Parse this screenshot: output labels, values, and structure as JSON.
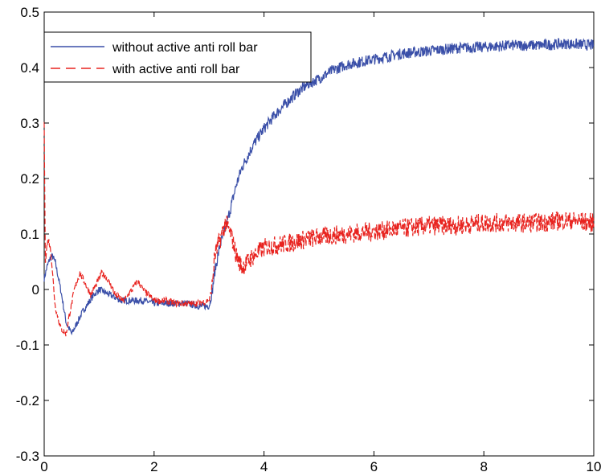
{
  "chart_data": {
    "type": "line",
    "xlim": [
      0,
      10
    ],
    "ylim": [
      -0.3,
      0.5
    ],
    "xticks": [
      0,
      2,
      4,
      6,
      8,
      10
    ],
    "yticks": [
      -0.3,
      -0.2,
      -0.1,
      0,
      0.1,
      0.2,
      0.3,
      0.4,
      0.5
    ],
    "xtick_labels": [
      "0",
      "2",
      "4",
      "6",
      "8",
      "10"
    ],
    "ytick_labels": [
      "-0.3",
      "-0.2",
      "-0.1",
      "0",
      "0.1",
      "0.2",
      "0.3",
      "0.4",
      "0.5"
    ],
    "grid": false,
    "legend_position": "top-left",
    "series": [
      {
        "name": "without active anti roll bar",
        "color": "#3a4fa8",
        "style": "solid",
        "x": [
          0,
          0.05,
          0.1,
          0.15,
          0.2,
          0.3,
          0.4,
          0.5,
          0.6,
          0.7,
          0.8,
          0.9,
          1.0,
          1.2,
          1.4,
          1.6,
          1.8,
          2.0,
          2.2,
          2.4,
          2.6,
          2.8,
          3.0,
          3.05,
          3.1,
          3.2,
          3.3,
          3.4,
          3.5,
          3.6,
          3.8,
          4.0,
          4.2,
          4.4,
          4.6,
          4.8,
          5.0,
          5.25,
          5.5,
          6.0,
          6.5,
          7.0,
          7.5,
          8.0,
          8.5,
          9.0,
          9.5,
          10.0
        ],
        "y": [
          0.02,
          0.04,
          0.055,
          0.06,
          0.05,
          0.0,
          -0.06,
          -0.08,
          -0.06,
          -0.04,
          -0.025,
          -0.01,
          0.0,
          -0.01,
          -0.02,
          -0.02,
          -0.02,
          -0.025,
          -0.025,
          -0.025,
          -0.025,
          -0.03,
          -0.03,
          -0.01,
          0.03,
          0.08,
          0.11,
          0.15,
          0.19,
          0.22,
          0.26,
          0.29,
          0.315,
          0.335,
          0.355,
          0.37,
          0.38,
          0.395,
          0.405,
          0.415,
          0.425,
          0.43,
          0.435,
          0.437,
          0.44,
          0.44,
          0.443,
          0.44
        ]
      },
      {
        "name": "with active anti roll bar",
        "color": "#e8231f",
        "style": "dashed",
        "x": [
          0,
          0.02,
          0.05,
          0.08,
          0.12,
          0.2,
          0.3,
          0.4,
          0.45,
          0.55,
          0.65,
          0.75,
          0.85,
          0.95,
          1.05,
          1.15,
          1.3,
          1.45,
          1.6,
          1.7,
          1.8,
          2.0,
          2.2,
          2.4,
          2.6,
          2.8,
          3.0,
          3.05,
          3.1,
          3.2,
          3.3,
          3.4,
          3.5,
          3.6,
          3.8,
          4.0,
          4.5,
          5.0,
          5.5,
          6.0,
          6.5,
          7.0,
          7.5,
          8.0,
          8.5,
          9.0,
          9.5,
          10.0
        ],
        "y": [
          0.3,
          0.05,
          0.08,
          0.09,
          0.07,
          -0.03,
          -0.07,
          -0.08,
          -0.05,
          0.0,
          0.03,
          0.01,
          -0.01,
          0.01,
          0.03,
          0.02,
          -0.01,
          -0.02,
          0.0,
          0.015,
          0.0,
          -0.02,
          -0.02,
          -0.025,
          -0.025,
          -0.025,
          -0.02,
          0.0,
          0.06,
          0.09,
          0.12,
          0.1,
          0.06,
          0.04,
          0.06,
          0.075,
          0.085,
          0.095,
          0.1,
          0.105,
          0.11,
          0.115,
          0.115,
          0.12,
          0.12,
          0.12,
          0.125,
          0.12
        ]
      }
    ]
  }
}
